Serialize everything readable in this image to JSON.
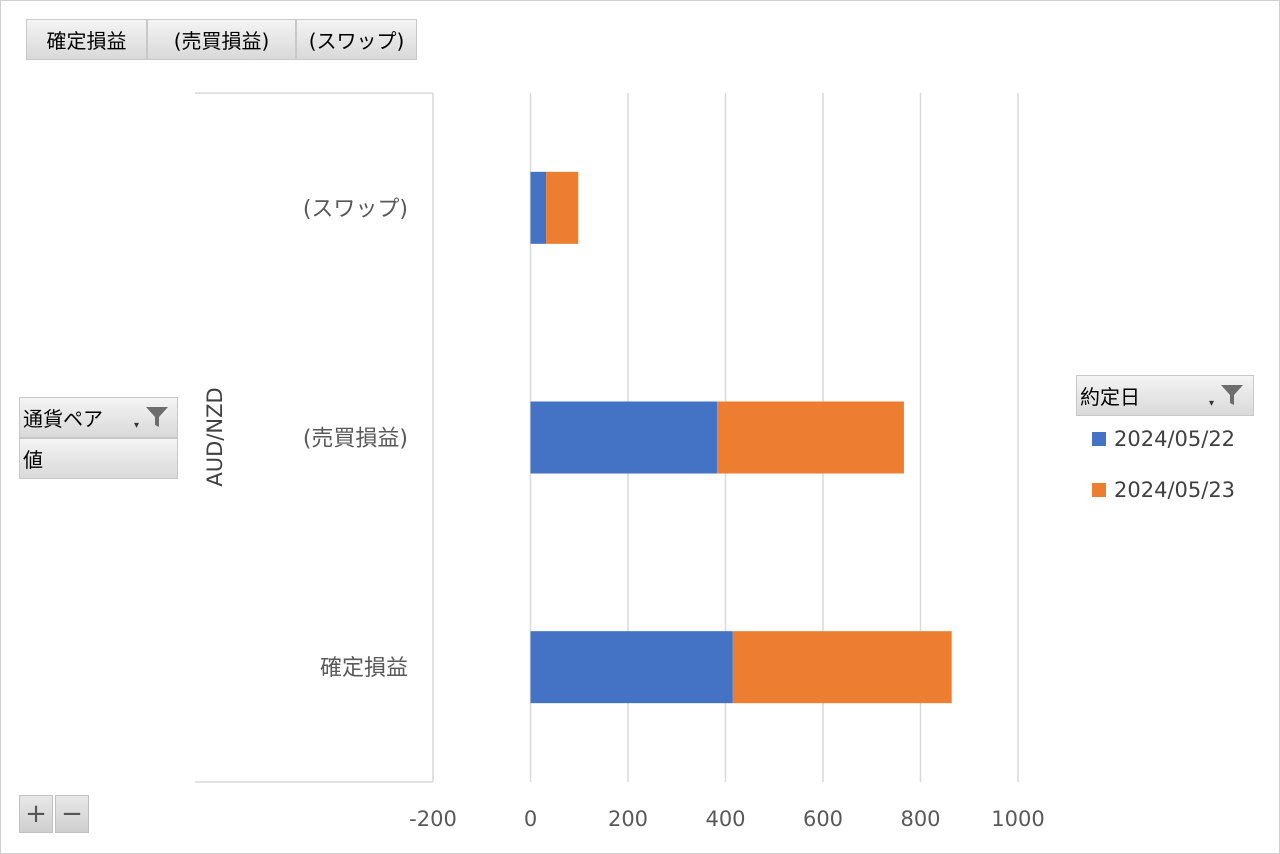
{
  "value_fields": [
    "確定損益",
    "(売買損益)",
    "(スワップ)"
  ],
  "row_fields": {
    "field1": "通貨ペア",
    "field2": "値"
  },
  "legend_field": "約定日",
  "zoom": {
    "plus": "+",
    "minus": "−"
  },
  "colors": {
    "series1": "#4472C4",
    "series2": "#ED7D31",
    "grid": "#d9d9d9"
  },
  "chart_data": {
    "type": "bar",
    "orientation": "horizontal",
    "stacked": true,
    "group_label": "AUD/NZD",
    "categories": [
      "(スワップ)",
      "(売買損益)",
      "確定損益"
    ],
    "series": [
      {
        "name": "2024/05/22",
        "values": [
          32,
          383,
          415
        ]
      },
      {
        "name": "2024/05/23",
        "values": [
          66,
          383,
          449
        ]
      }
    ],
    "xlim": [
      -200,
      1000
    ],
    "xticks": [
      "-200",
      "0",
      "200",
      "400",
      "600",
      "800",
      "1000"
    ],
    "grid": true,
    "legend": "right"
  }
}
